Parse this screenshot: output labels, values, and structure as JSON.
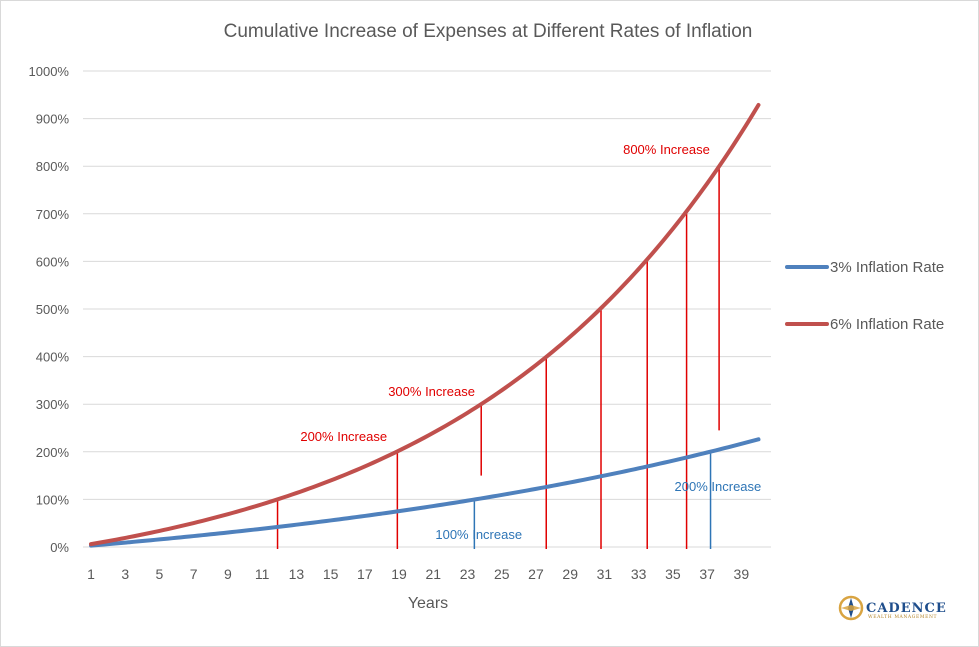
{
  "chart_data": {
    "type": "line",
    "title": "Cumulative Increase of Expenses at Different Rates of Inflation",
    "xlabel": "Years",
    "ylabel": "",
    "x_tick_labels": [
      "1",
      "3",
      "5",
      "7",
      "9",
      "11",
      "13",
      "15",
      "17",
      "19",
      "21",
      "23",
      "25",
      "27",
      "29",
      "31",
      "33",
      "35",
      "37",
      "39"
    ],
    "y_tick_labels": [
      "0%",
      "100%",
      "200%",
      "300%",
      "400%",
      "500%",
      "600%",
      "700%",
      "800%",
      "900%",
      "1000%"
    ],
    "ylim": [
      0,
      10
    ],
    "x_range": [
      1,
      40
    ],
    "grid": "horizontal",
    "legend_position": "right",
    "series": [
      {
        "name": "3% Inflation Rate",
        "color": "#4f81bd",
        "rate": 0.03
      },
      {
        "name": "6% Inflation Rate",
        "color": "#c0504d",
        "rate": 0.06
      }
    ],
    "annotations": [
      {
        "text": "100% Increase",
        "color": "#2e75b6",
        "x": 23.4
      },
      {
        "text": "200% Increase",
        "color": "#2e75b6",
        "x": 37.2
      },
      {
        "text": "200% Increase",
        "color": "#e00000",
        "x": 18.9
      },
      {
        "text": "300% Increase",
        "color": "#e00000",
        "x": 23.8
      },
      {
        "text": "800% Increase",
        "color": "#e00000",
        "x": 37.7
      }
    ],
    "marker_lines": [
      {
        "x": 11.9,
        "color": "#e00000",
        "y_top": 1.0,
        "y_bottom": 0
      },
      {
        "x": 18.9,
        "color": "#e00000",
        "y_top": 2.0,
        "y_bottom": 0
      },
      {
        "x": 23.8,
        "color": "#e00000",
        "y_top": 3.0,
        "y_bottom": 1.5
      },
      {
        "x": 27.6,
        "color": "#e00000",
        "y_top": 4.0,
        "y_bottom": 0
      },
      {
        "x": 30.8,
        "color": "#e00000",
        "y_top": 5.0,
        "y_bottom": 0
      },
      {
        "x": 33.5,
        "color": "#e00000",
        "y_top": 6.0,
        "y_bottom": 0
      },
      {
        "x": 35.8,
        "color": "#e00000",
        "y_top": 7.0,
        "y_bottom": 0
      },
      {
        "x": 37.7,
        "color": "#e00000",
        "y_top": 8.0,
        "y_bottom": 2.45
      },
      {
        "x": 23.4,
        "color": "#2e75b6",
        "y_top": 1.0,
        "y_bottom": 0
      },
      {
        "x": 37.2,
        "color": "#2e75b6",
        "y_top": 2.0,
        "y_bottom": 0
      }
    ]
  },
  "logo": {
    "name": "CADENCE",
    "sub": "WEALTH MANAGEMENT",
    "colors": {
      "navy": "#1f4e8c",
      "gold": "#d9a441"
    }
  }
}
